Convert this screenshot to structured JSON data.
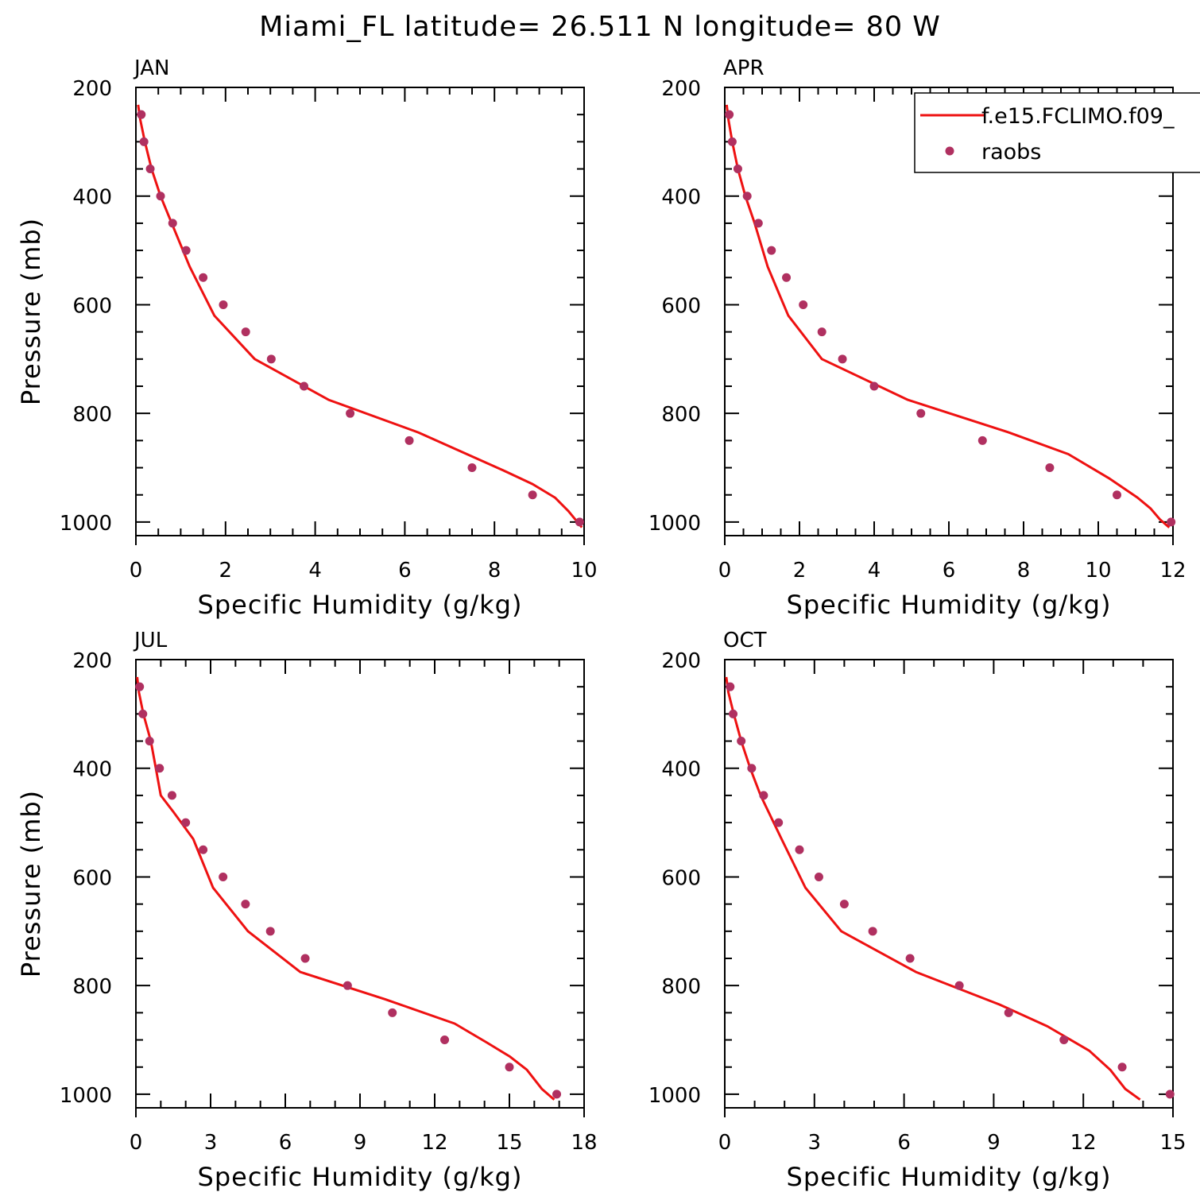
{
  "figure_title": "Miami_FL  latitude= 26.511 N longitude= 80 W",
  "legend": {
    "model_label": "f.e15.FCLIMO.f09_",
    "obs_label": "raobs",
    "model_color": "#ee1111",
    "obs_color": "#b03060"
  },
  "chart_data": [
    {
      "type": "line",
      "title": "JAN",
      "xlabel": "Specific Humidity (g/kg)",
      "ylabel": "Pressure (mb)",
      "xlim": [
        0,
        10
      ],
      "ylim": [
        1025,
        200
      ],
      "y_reversed": true,
      "x_ticks": [
        0,
        2,
        4,
        6,
        8,
        10
      ],
      "x_tick_labels": [
        "0",
        "2",
        "4",
        "6",
        "8",
        "10"
      ],
      "y_ticks": [
        200,
        400,
        600,
        800,
        1000
      ],
      "y_tick_labels": [
        "200",
        "400",
        "600",
        "800",
        "1000"
      ],
      "series": [
        {
          "name": "f.e15.FCLIMO.f09_",
          "kind": "line",
          "x": [
            0.05,
            0.1,
            0.2,
            0.35,
            0.55,
            0.8,
            1.2,
            1.75,
            2.65,
            4.3,
            6.3,
            8.2,
            8.85,
            9.35,
            9.65,
            9.95
          ],
          "y": [
            232,
            260,
            300,
            350,
            400,
            450,
            530,
            620,
            700,
            775,
            835,
            905,
            930,
            955,
            980,
            1010
          ]
        },
        {
          "name": "raobs",
          "kind": "scatter",
          "x": [
            0.12,
            0.18,
            0.32,
            0.55,
            0.82,
            1.12,
            1.5,
            1.95,
            2.45,
            3.02,
            3.75,
            4.78,
            6.1,
            7.5,
            8.85,
            9.9
          ],
          "y": [
            250,
            300,
            350,
            400,
            450,
            500,
            550,
            600,
            650,
            700,
            750,
            800,
            850,
            900,
            950,
            1000
          ]
        }
      ]
    },
    {
      "type": "line",
      "title": "APR",
      "xlabel": "Specific Humidity (g/kg)",
      "ylabel": "",
      "xlim": [
        0,
        12
      ],
      "ylim": [
        1025,
        200
      ],
      "y_reversed": true,
      "x_ticks": [
        0,
        2,
        4,
        6,
        8,
        10,
        12
      ],
      "x_tick_labels": [
        "0",
        "2",
        "4",
        "6",
        "8",
        "10",
        "12"
      ],
      "y_ticks": [
        200,
        400,
        600,
        800,
        1000
      ],
      "y_tick_labels": [
        "200",
        "400",
        "600",
        "800",
        "1000"
      ],
      "series": [
        {
          "name": "f.e15.FCLIMO.f09_",
          "kind": "line",
          "x": [
            0.05,
            0.1,
            0.2,
            0.35,
            0.55,
            0.8,
            1.15,
            1.7,
            2.6,
            4.9,
            7.6,
            9.2,
            10.3,
            11.05,
            11.4,
            11.65,
            11.9
          ],
          "y": [
            232,
            260,
            300,
            350,
            400,
            450,
            530,
            620,
            700,
            775,
            835,
            875,
            920,
            955,
            975,
            995,
            1010
          ]
        },
        {
          "name": "raobs",
          "kind": "scatter",
          "x": [
            0.12,
            0.2,
            0.35,
            0.6,
            0.9,
            1.25,
            1.65,
            2.1,
            2.6,
            3.15,
            4.0,
            5.25,
            6.9,
            8.7,
            10.5,
            11.95
          ],
          "y": [
            250,
            300,
            350,
            400,
            450,
            500,
            550,
            600,
            650,
            700,
            750,
            800,
            850,
            900,
            950,
            1000
          ]
        }
      ]
    },
    {
      "type": "line",
      "title": "JUL",
      "xlabel": "Specific Humidity (g/kg)",
      "ylabel": "Pressure (mb)",
      "xlim": [
        0,
        18
      ],
      "ylim": [
        1025,
        200
      ],
      "y_reversed": true,
      "x_ticks": [
        0,
        3,
        6,
        9,
        12,
        15,
        18
      ],
      "x_tick_labels": [
        "0",
        "3",
        "6",
        "9",
        "12",
        "15",
        "18"
      ],
      "y_ticks": [
        200,
        400,
        600,
        800,
        1000
      ],
      "y_tick_labels": [
        "200",
        "400",
        "600",
        "800",
        "1000"
      ],
      "series": [
        {
          "name": "f.e15.FCLIMO.f09_",
          "kind": "line",
          "x": [
            0.05,
            0.12,
            0.3,
            0.6,
            0.8,
            1.0,
            1.5,
            2.3,
            3.1,
            4.5,
            6.6,
            10.0,
            12.8,
            14.1,
            15.0,
            15.7,
            16.3,
            16.8
          ],
          "y": [
            232,
            260,
            300,
            350,
            400,
            450,
            480,
            530,
            620,
            700,
            775,
            825,
            870,
            905,
            930,
            955,
            990,
            1010
          ]
        },
        {
          "name": "raobs",
          "kind": "scatter",
          "x": [
            0.15,
            0.28,
            0.55,
            0.95,
            1.45,
            2.0,
            2.7,
            3.5,
            4.4,
            5.4,
            6.8,
            8.5,
            10.3,
            12.4,
            15.0,
            16.9
          ],
          "y": [
            250,
            300,
            350,
            400,
            450,
            500,
            550,
            600,
            650,
            700,
            750,
            800,
            850,
            900,
            950,
            1000
          ]
        }
      ]
    },
    {
      "type": "line",
      "title": "OCT",
      "xlabel": "Specific Humidity (g/kg)",
      "ylabel": "",
      "xlim": [
        0,
        15
      ],
      "ylim": [
        1025,
        200
      ],
      "y_reversed": true,
      "x_ticks": [
        0,
        3,
        6,
        9,
        12,
        15
      ],
      "x_tick_labels": [
        "0",
        "3",
        "6",
        "9",
        "12",
        "15"
      ],
      "y_ticks": [
        200,
        400,
        600,
        800,
        1000
      ],
      "y_tick_labels": [
        "200",
        "400",
        "600",
        "800",
        "1000"
      ],
      "series": [
        {
          "name": "f.e15.FCLIMO.f09_",
          "kind": "line",
          "x": [
            0.05,
            0.12,
            0.3,
            0.55,
            0.85,
            1.2,
            1.9,
            2.7,
            3.9,
            6.4,
            9.2,
            10.8,
            12.2,
            12.9,
            13.4,
            13.9
          ],
          "y": [
            232,
            260,
            300,
            350,
            400,
            450,
            530,
            620,
            700,
            775,
            835,
            875,
            920,
            955,
            990,
            1010
          ]
        },
        {
          "name": "raobs",
          "kind": "scatter",
          "x": [
            0.18,
            0.28,
            0.55,
            0.9,
            1.3,
            1.8,
            2.5,
            3.15,
            4.0,
            4.95,
            6.2,
            7.85,
            9.5,
            11.35,
            13.3,
            14.9
          ],
          "y": [
            250,
            300,
            350,
            400,
            450,
            500,
            550,
            600,
            650,
            700,
            750,
            800,
            850,
            900,
            950,
            1000
          ]
        }
      ]
    }
  ]
}
